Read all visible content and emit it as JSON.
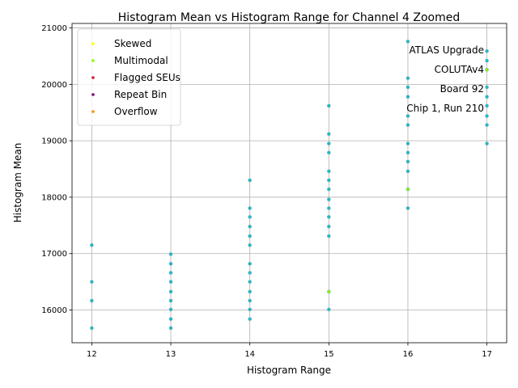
{
  "chart_data": {
    "type": "scatter",
    "title": "Histogram Mean vs Histogram Range for Channel 4 Zoomed",
    "xlabel": "Histogram Range",
    "ylabel": "Histogram Mean",
    "xlim": [
      11.75,
      17.25
    ],
    "ylim": [
      15420,
      21080
    ],
    "xticks": [
      12,
      13,
      14,
      15,
      16,
      17
    ],
    "yticks": [
      16000,
      17000,
      18000,
      19000,
      20000,
      21000
    ],
    "grid": true,
    "legend_position": "top-left",
    "annotation": [
      "ATLAS Upgrade",
      "COLUTAv4",
      "Board 92",
      "Chip 1, Run 210"
    ],
    "series": [
      {
        "name": "Skewed",
        "color": "#ffff00",
        "points": []
      },
      {
        "name": "Multimodal",
        "color": "#7fff00",
        "points": [
          [
            15,
            16325
          ],
          [
            16,
            18140
          ],
          [
            17,
            20260
          ]
        ]
      },
      {
        "name": "Flagged SEUs",
        "color": "#dc143c",
        "points": []
      },
      {
        "name": "Repeat Bin",
        "color": "#800080",
        "points": []
      },
      {
        "name": "Overflow",
        "color": "#ff8c00",
        "points": []
      },
      {
        "name": "",
        "color": "#17becf",
        "points": [
          [
            12,
            15680
          ],
          [
            12,
            16165
          ],
          [
            12,
            16500
          ],
          [
            12,
            17150
          ],
          [
            13,
            15680
          ],
          [
            13,
            15840
          ],
          [
            13,
            16010
          ],
          [
            13,
            16165
          ],
          [
            13,
            16325
          ],
          [
            13,
            16500
          ],
          [
            13,
            16660
          ],
          [
            13,
            16820
          ],
          [
            13,
            16990
          ],
          [
            14,
            15840
          ],
          [
            14,
            16010
          ],
          [
            14,
            16165
          ],
          [
            14,
            16325
          ],
          [
            14,
            16500
          ],
          [
            14,
            16660
          ],
          [
            14,
            16820
          ],
          [
            14,
            17150
          ],
          [
            14,
            17310
          ],
          [
            14,
            17480
          ],
          [
            14,
            17650
          ],
          [
            14,
            17805
          ],
          [
            14,
            18300
          ],
          [
            15,
            16010
          ],
          [
            15,
            17310
          ],
          [
            15,
            17480
          ],
          [
            15,
            17650
          ],
          [
            15,
            17805
          ],
          [
            15,
            17960
          ],
          [
            15,
            18140
          ],
          [
            15,
            18300
          ],
          [
            15,
            18460
          ],
          [
            15,
            18790
          ],
          [
            15,
            18950
          ],
          [
            15,
            19120
          ],
          [
            15,
            19620
          ],
          [
            16,
            17805
          ],
          [
            16,
            18460
          ],
          [
            16,
            18630
          ],
          [
            16,
            18790
          ],
          [
            16,
            18950
          ],
          [
            16,
            19280
          ],
          [
            16,
            19440
          ],
          [
            16,
            19780
          ],
          [
            16,
            19950
          ],
          [
            16,
            20110
          ],
          [
            16,
            20760
          ],
          [
            17,
            18950
          ],
          [
            17,
            19280
          ],
          [
            17,
            19440
          ],
          [
            17,
            19620
          ],
          [
            17,
            19780
          ],
          [
            17,
            19950
          ],
          [
            17,
            20420
          ],
          [
            17,
            20590
          ]
        ]
      }
    ]
  }
}
